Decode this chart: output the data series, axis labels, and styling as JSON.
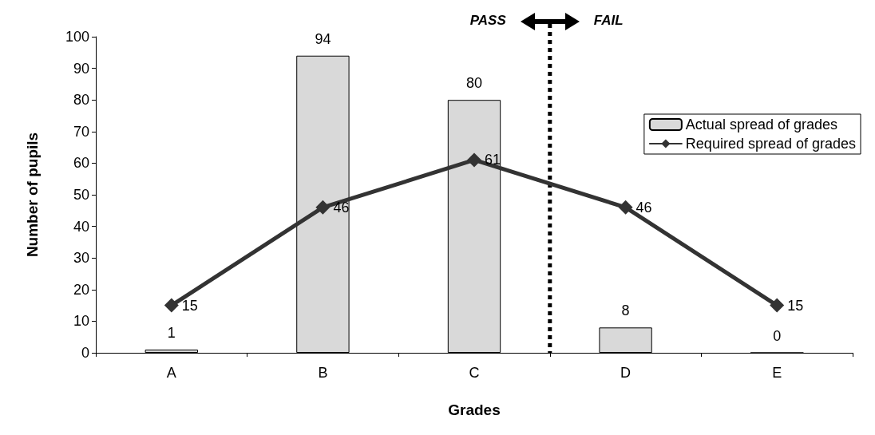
{
  "chart_data": {
    "type": "bar",
    "xlabel": "Grades",
    "ylabel": "Number of pupils",
    "categories": [
      "A",
      "B",
      "C",
      "D",
      "E"
    ],
    "series": [
      {
        "name": "Actual spread of grades",
        "color": "#d9d9d9",
        "values": [
          1,
          94,
          80,
          8,
          0
        ]
      },
      {
        "name": "Required spread of grades",
        "type": "line",
        "color": "#333333",
        "values": [
          15,
          46,
          61,
          46,
          15
        ]
      }
    ],
    "ylim": [
      0,
      100
    ],
    "yticks": [
      0,
      10,
      20,
      30,
      40,
      50,
      60,
      70,
      80,
      90,
      100
    ],
    "grid": false,
    "legend": "top right",
    "marker": "diamond",
    "line_style": "solid",
    "data_labels": true,
    "annotations": [
      "PASS",
      "FAIL"
    ]
  }
}
